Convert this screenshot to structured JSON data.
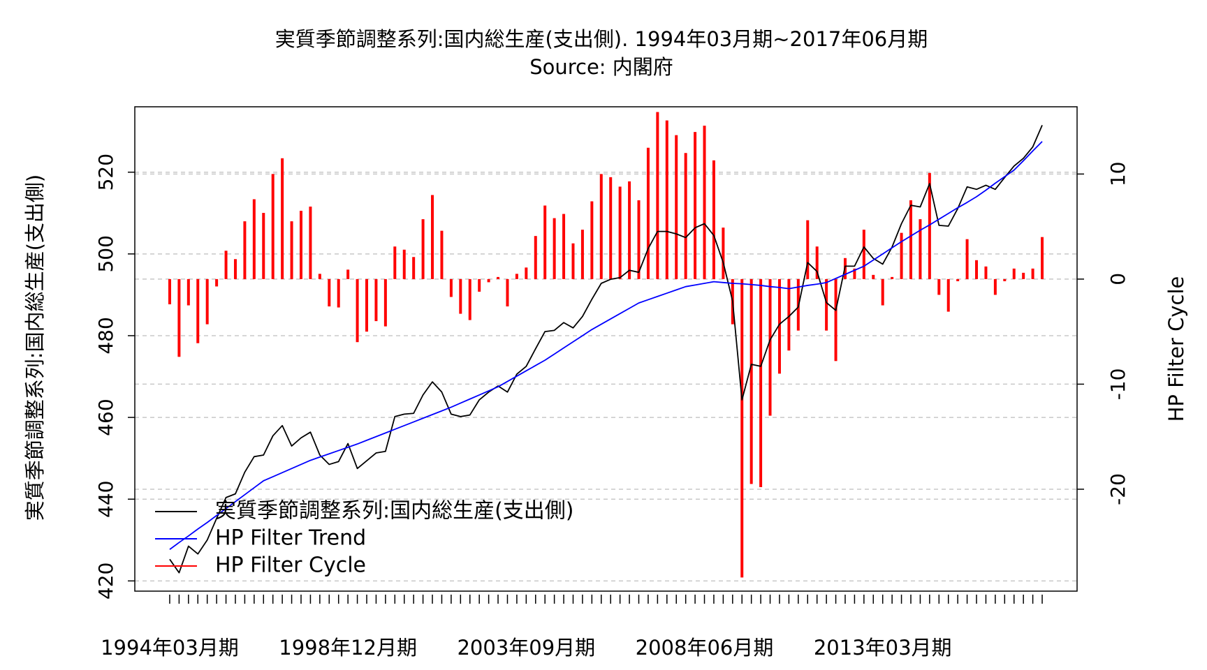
{
  "chart_data": {
    "type": "line",
    "title": "実質季節調整系列:国内総生産(支出側). 1994年03月期~2017年06月期",
    "subtitle": "Source: 内閣府",
    "y_label": "実質季節調整系列:国内総生産(支出側)",
    "y2_label": "HP Filter Cycle",
    "categories": [
      "1994年03月期",
      null,
      null,
      null,
      null,
      null,
      null,
      null,
      null,
      null,
      null,
      null,
      null,
      null,
      null,
      null,
      null,
      null,
      null,
      "1998年12月期",
      null,
      null,
      null,
      null,
      null,
      null,
      null,
      null,
      null,
      null,
      null,
      null,
      null,
      null,
      null,
      null,
      null,
      null,
      "2003年09月期",
      null,
      null,
      null,
      null,
      null,
      null,
      null,
      null,
      null,
      null,
      null,
      null,
      null,
      null,
      null,
      null,
      null,
      null,
      "2008年06月期",
      null,
      null,
      null,
      null,
      null,
      null,
      null,
      null,
      null,
      null,
      null,
      null,
      null,
      null,
      null,
      null,
      null,
      null,
      "2013年03月期",
      null,
      null,
      null,
      null,
      null,
      null,
      null,
      null,
      null,
      null,
      null,
      null,
      null,
      null,
      null,
      null,
      null
    ],
    "ylim": [
      417.5,
      536
    ],
    "yticks": [
      420,
      440,
      460,
      480,
      500,
      520
    ],
    "y2lim": [
      -29.7,
      16.4
    ],
    "y2ticks": [
      -20,
      -10,
      0,
      10
    ],
    "grid": true,
    "legend": "bottom-left",
    "series": [
      {
        "name": "実質季節調整系列:国内総生産(支出側)",
        "color": "#000000",
        "type": "line",
        "values": [
          425.3,
          422,
          428.5,
          426.6,
          430,
          435.3,
          440.4,
          441.3,
          446.6,
          450.4,
          450.8,
          455.5,
          458,
          453,
          455,
          456.4,
          450.8,
          448.5,
          449.2,
          453.6,
          447.5,
          449.4,
          451.3,
          451.7,
          460.2,
          460.8,
          461,
          465.5,
          468.7,
          466.2,
          460.8,
          460.2,
          460.6,
          464.3,
          466.2,
          467.7,
          466.2,
          470.6,
          472.5,
          476.8,
          481,
          481.3,
          483.2,
          481.9,
          484.7,
          488.9,
          492.8,
          493.8,
          494.2,
          496,
          495.5,
          501.3,
          505.5,
          505.5,
          504.9,
          504,
          506.4,
          507.4,
          504.5,
          497.9,
          488.5,
          464.3,
          473,
          472.5,
          479,
          482.8,
          484.7,
          487,
          497.9,
          495.7,
          488.1,
          486.2,
          497,
          497,
          501.7,
          498.9,
          497.5,
          501.7,
          507.4,
          511.9,
          511.5,
          517.2,
          507,
          506.8,
          511.1,
          516.4,
          515.8,
          516.8,
          515.8,
          518.7,
          521.5,
          523.4,
          526.2,
          531.5
        ]
      },
      {
        "name": "HP Filter Trend",
        "color": "#0000ff",
        "type": "line",
        "values": [
          427.7,
          429.4,
          431,
          432.7,
          434.3,
          436,
          437.7,
          439.4,
          441.1,
          442.8,
          444.5,
          445.5,
          446.5,
          447.5,
          448.5,
          449.5,
          450.3,
          451.1,
          451.9,
          452.7,
          453.5,
          454.4,
          455.3,
          456.2,
          457.1,
          458,
          458.9,
          459.8,
          460.7,
          461.6,
          462.5,
          463.5,
          464.5,
          465.5,
          466.5,
          467.5,
          468.8,
          470.1,
          471.4,
          472.7,
          474,
          475.5,
          477,
          478.5,
          480,
          481.5,
          482.8,
          484.1,
          485.4,
          486.7,
          488,
          488.8,
          489.6,
          490.4,
          491.2,
          492,
          492.4,
          492.8,
          493.2,
          493,
          492.8,
          492.7,
          492.5,
          492.3,
          492,
          491.8,
          491.5,
          491.9,
          492.3,
          492.6,
          493,
          494,
          495,
          496,
          497,
          498.5,
          500,
          501.5,
          503,
          504.4,
          505.8,
          507.1,
          508.5,
          509.9,
          511.3,
          512.6,
          514,
          515.6,
          517.3,
          518.9,
          520.5,
          522.8,
          525.2,
          527.5
        ]
      },
      {
        "name": "HP Filter Cycle",
        "color": "#ff0000",
        "type": "bar",
        "axis": "y2",
        "values": [
          -2.4,
          -7.4,
          -2.5,
          -6.1,
          -4.3,
          -0.7,
          2.7,
          1.9,
          5.5,
          7.6,
          6.3,
          10,
          11.5,
          5.5,
          6.5,
          6.9,
          0.5,
          -2.6,
          -2.7,
          0.9,
          -6,
          -5,
          -4,
          -4.5,
          3.1,
          2.8,
          2.1,
          5.7,
          8,
          4.6,
          -1.7,
          -3.3,
          -3.9,
          -1.2,
          -0.3,
          0.2,
          -2.6,
          0.5,
          1.1,
          4.1,
          7,
          5.8,
          6.2,
          3.4,
          4.7,
          7.4,
          10,
          9.7,
          8.8,
          9.3,
          7.5,
          12.5,
          15.9,
          15.1,
          13.7,
          12,
          14,
          14.6,
          11.3,
          4.9,
          -4.3,
          -28.4,
          -19.5,
          -19.8,
          -13,
          -9,
          -6.8,
          -4.9,
          5.6,
          3.1,
          -4.9,
          -7.8,
          2,
          1,
          4.7,
          0.4,
          -2.5,
          0.2,
          4.4,
          7.5,
          5.7,
          10.1,
          -1.5,
          -3.1,
          -0.2,
          3.8,
          1.8,
          1.2,
          -1.5,
          -0.2,
          1,
          0.6,
          1,
          4
        ]
      }
    ]
  }
}
